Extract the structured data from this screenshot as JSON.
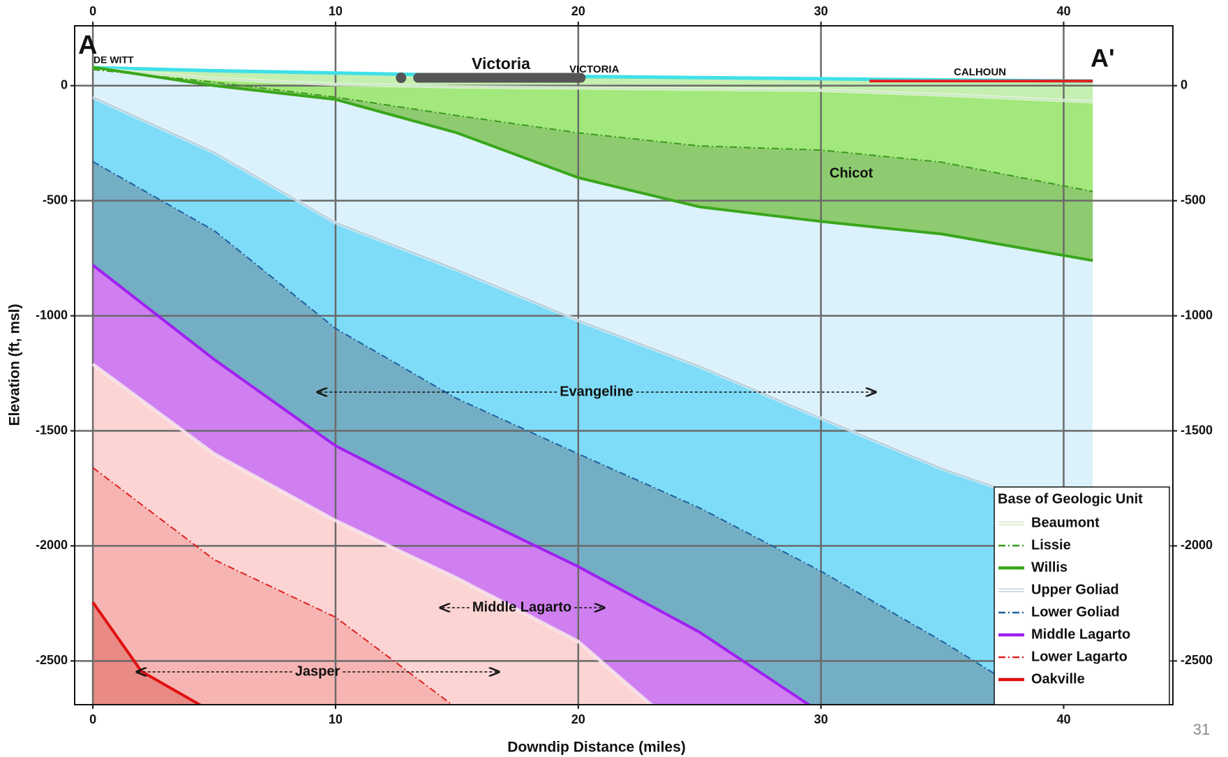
{
  "chart_data": {
    "type": "line",
    "xlabel": "Downdip Distance (miles)",
    "ylabel": "Elevation (ft, msl)",
    "xlim": [
      -0.75,
      44.5
    ],
    "ylim": [
      -2690,
      260
    ],
    "xticks": [
      0,
      10,
      20,
      30,
      40
    ],
    "yticks": [
      0,
      -500,
      -1000,
      -1500,
      -2000,
      -2500
    ],
    "grid": true,
    "legend": "lower right",
    "legend_title": "Base of Geologic Unit",
    "surface": {
      "color": "#3fe0e8",
      "x": [
        0,
        5,
        10,
        15,
        20,
        25,
        30,
        35,
        41.2
      ],
      "values": [
        78,
        65,
        55,
        45,
        40,
        35,
        30,
        25,
        20
      ]
    },
    "below_fill": "#e98a84",
    "series": [
      {
        "name": "Beaumont",
        "color": "#cfe9c6",
        "style": "double",
        "fill": "#c5efb0",
        "x": [
          0,
          5,
          10,
          15,
          20,
          25,
          30,
          35,
          41.2
        ],
        "values": [
          75,
          30,
          5,
          -5,
          -10,
          -15,
          -20,
          -40,
          -70
        ]
      },
      {
        "name": "Lissie",
        "color": "#3a9a1a",
        "style": "dashdot",
        "fill": "#a2e87c",
        "x": [
          0,
          5,
          10,
          15,
          20,
          25,
          30,
          35,
          41.2
        ],
        "values": [
          70,
          15,
          -50,
          -130,
          -205,
          -262,
          -280,
          -333,
          -460
        ]
      },
      {
        "name": "Willis",
        "color": "#3aa61c",
        "style": "solid",
        "fill": "#8ecb70",
        "x": [
          0,
          5,
          10,
          15,
          20,
          25,
          30,
          35,
          41.2
        ],
        "values": [
          80,
          0,
          -60,
          -205,
          -400,
          -527,
          -590,
          -645,
          -760
        ]
      },
      {
        "name": "Upper Goliad",
        "color": "#bcd3e0",
        "style": "double",
        "fill": "#dbf1fb",
        "x": [
          0,
          5,
          10,
          15,
          20,
          25,
          30,
          35,
          41.2
        ],
        "values": [
          -50,
          -290,
          -595,
          -800,
          -1020,
          -1220,
          -1445,
          -1665,
          -1890
        ]
      },
      {
        "name": "Lower Goliad",
        "color": "#1f5fa0",
        "style": "dashdot",
        "fill": "#7fdcf8",
        "x": [
          0,
          5,
          10,
          15,
          20,
          25,
          30,
          35,
          41.2
        ],
        "values": [
          -330,
          -630,
          -1055,
          -1360,
          -1600,
          -1835,
          -2110,
          -2415,
          -2820
        ]
      },
      {
        "name": "Middle Lagarto",
        "color": "#a020f0",
        "style": "solid",
        "fill": "#74aec4",
        "x": [
          0,
          5,
          10,
          15,
          20,
          25,
          29.5,
          32
        ],
        "values": [
          -780,
          -1190,
          -1565,
          -1835,
          -2090,
          -2375,
          -2690,
          -2800
        ]
      },
      {
        "color": "#f4dbe4",
        "style": "double",
        "fill": "#cf7ff0",
        "x": [
          0,
          5,
          10,
          15,
          20,
          23,
          25
        ],
        "values": [
          -1210,
          -1600,
          -1890,
          -2140,
          -2415,
          -2690,
          -2760
        ]
      },
      {
        "name": "Lower Lagarto",
        "color": "#e02020",
        "style": "dashdot",
        "fill": "#fcd4d4",
        "x": [
          0,
          5,
          10,
          14.8,
          16
        ],
        "values": [
          -1660,
          -2060,
          -2310,
          -2690,
          -2730
        ]
      },
      {
        "name": "Oakville",
        "color": "#e01010",
        "style": "solid",
        "fill": "#f6b5b3",
        "x": [
          0,
          2,
          4.4,
          5
        ],
        "values": [
          -2245,
          -2545,
          -2690,
          -2720
        ]
      }
    ],
    "annotations": [
      "A",
      "A'",
      "DE WITT",
      "Victoria",
      "VICTORIA",
      "CALHOUN",
      "Chicot",
      "Evangeline",
      "Middle Lagarto",
      "Jasper"
    ],
    "page_number": "31"
  }
}
